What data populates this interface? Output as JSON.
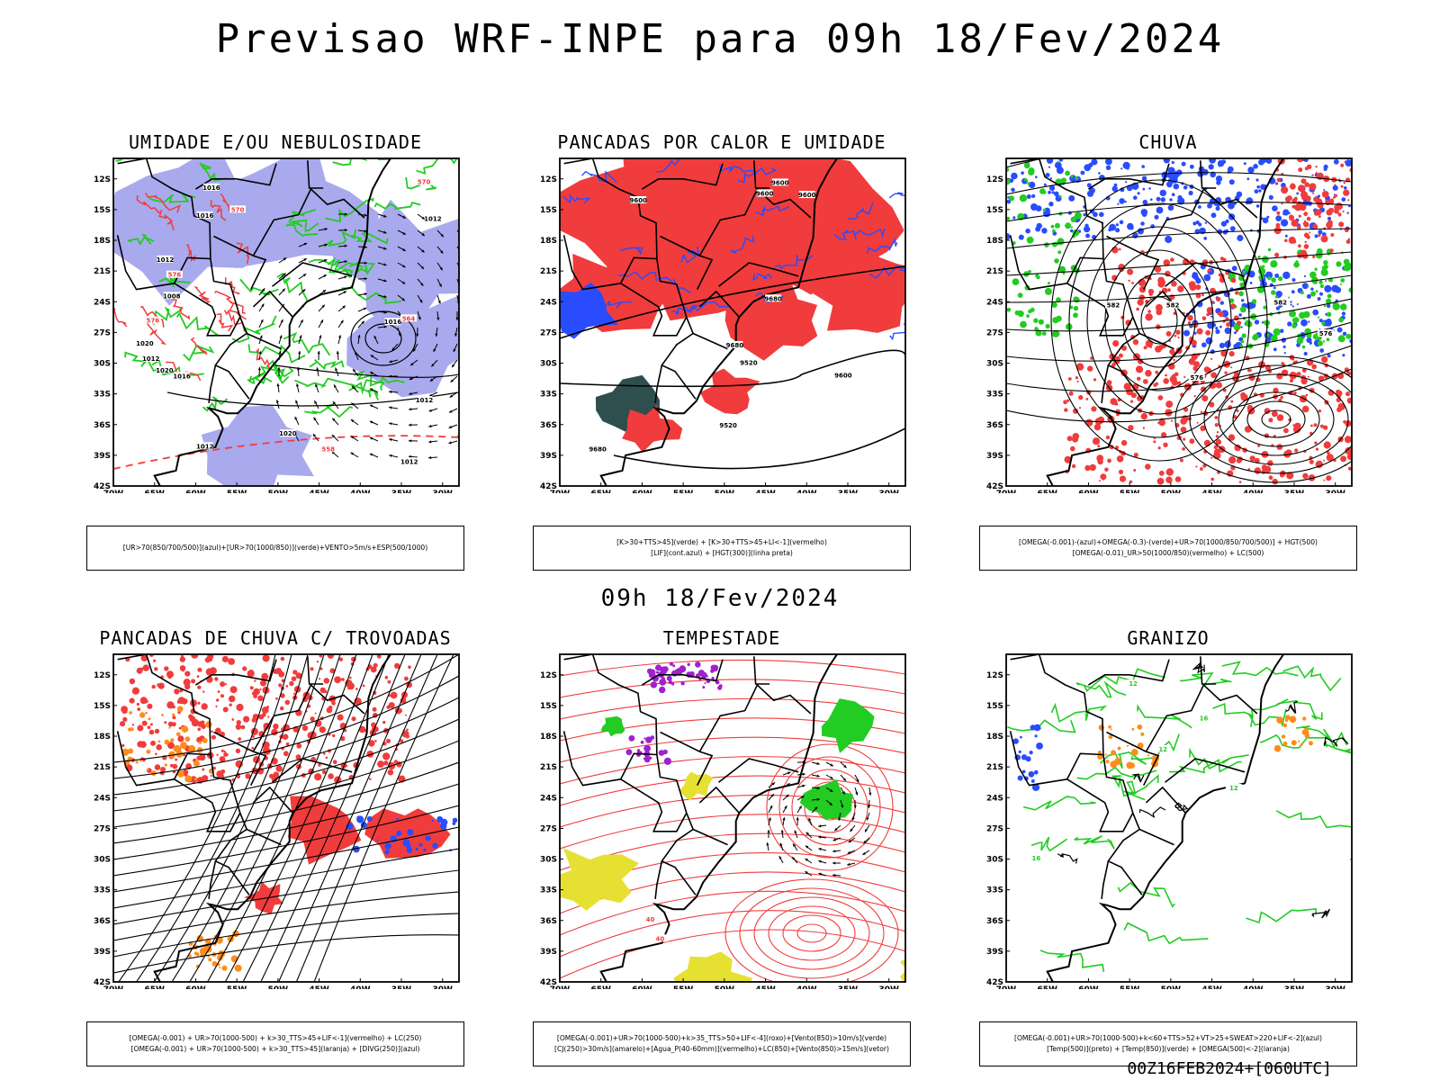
{
  "header": {
    "title": "Previsao WRF-INPE  para 09h 18/Fev/2024"
  },
  "middle_title": "09h 18/Fev/2024",
  "footer": "00Z16FEB2024+[060UTC]",
  "axes": {
    "lat_labels": [
      "12S",
      "15S",
      "18S",
      "21S",
      "24S",
      "27S",
      "30S",
      "33S",
      "36S",
      "39S",
      "42S"
    ],
    "lon_labels": [
      "70W",
      "65W",
      "60W",
      "55W",
      "50W",
      "45W",
      "40W",
      "35W",
      "30W"
    ]
  },
  "panels": [
    {
      "title": "UMIDADE E/OU NEBULOSIDADE",
      "legend": [
        "[UR>70(850/700/500)](azul)+[UR>70(1000/850)](verde)+VENTO>5m/s+ESP(500/1000)"
      ],
      "contour_labels": [
        "1012",
        "1012",
        "1016",
        "1020",
        "1012",
        "1012",
        "1012",
        "1012",
        "1008",
        "1016",
        "1016",
        "1020",
        "1016",
        "1020",
        "576",
        "576",
        "570",
        "570",
        "564",
        "558"
      ]
    },
    {
      "title": "PANCADAS POR CALOR E UMIDADE",
      "legend": [
        "[K>30+TTS>45](verde) + [K>30+TTS>45+LI<-1](vermelho)",
        "[LIF](cont.azul) + [HGT(300)](linha preta)"
      ],
      "contour_labels": [
        "9680",
        "9680",
        "9680",
        "9600",
        "9600",
        "9600",
        "9520",
        "9600",
        "9520",
        "9600"
      ]
    },
    {
      "title": "CHUVA",
      "legend": [
        "[OMEGA(-0.001)-(azul)+OMEGA(-0.3)-(verde)+UR>70(1000/850/700/500)] + HGT(500)",
        "[OMEGA(-0.01)_UR>50(1000/850)(vermelho) + LC(500)"
      ],
      "contour_labels": [
        "582",
        "582",
        "582",
        "576",
        "576"
      ]
    },
    {
      "title": "PANCADAS DE CHUVA C/ TROVOADAS",
      "legend": [
        "[OMEGA(-0.001) + UR>70(1000-500) + k>30_TTS>45+LIF<-1](vermelho) + LC(250)",
        "[OMEGA(-0.001) + UR>70(1000-500) + k>30_TTS>45](laranja) + [DIVG(250)](azul)"
      ],
      "contour_labels": []
    },
    {
      "title": "TEMPESTADE",
      "legend": [
        "[OMEGA(-0.001)+UR>70(1000-500)+k>35_TTS>50+LIF<-4](roxo)+[Vento(850)>10m/s](verde)",
        "[CJ(250)>30m/s](amarelo)+[Agua_P(40-60mm)](vermelho)+LC(850)+[Vento(850)>15m/s](vetor)"
      ],
      "contour_labels": [
        "40",
        "40"
      ]
    },
    {
      "title": "GRANIZO",
      "legend": [
        "[OMEGA(-0.001)+UR>70(1000-500)+k<60+TTS>52+VT>25+SWEAT>220+LIF<-2](azul)",
        "[Temp(500)](preto) + [Temp(850)](verde) + [OMEGA(500)<-2](laranja)"
      ],
      "contour_labels": [
        "12",
        "12",
        "12",
        "16",
        "16"
      ]
    }
  ],
  "colors": {
    "red": "#f03c3c",
    "green": "#22cc22",
    "blue": "#2a4cff",
    "lavender": "#a9a9ee",
    "darkteal": "#2f4f4f",
    "yellow": "#e6e032",
    "purple": "#a020d0",
    "orange": "#ff8c1a"
  }
}
